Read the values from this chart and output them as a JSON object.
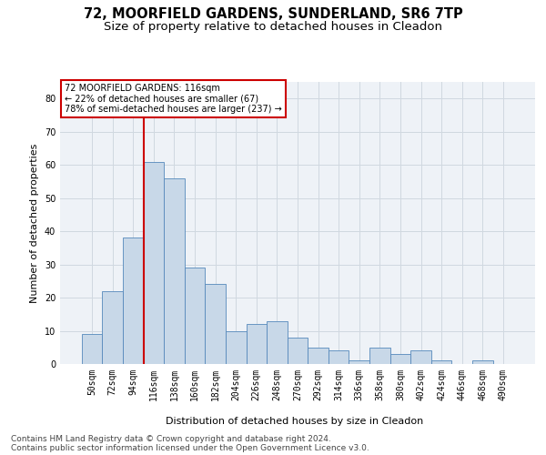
{
  "title1": "72, MOORFIELD GARDENS, SUNDERLAND, SR6 7TP",
  "title2": "Size of property relative to detached houses in Cleadon",
  "xlabel": "Distribution of detached houses by size in Cleadon",
  "ylabel": "Number of detached properties",
  "footnote1": "Contains HM Land Registry data © Crown copyright and database right 2024.",
  "footnote2": "Contains public sector information licensed under the Open Government Licence v3.0.",
  "bar_labels": [
    "50sqm",
    "72sqm",
    "94sqm",
    "116sqm",
    "138sqm",
    "160sqm",
    "182sqm",
    "204sqm",
    "226sqm",
    "248sqm",
    "270sqm",
    "292sqm",
    "314sqm",
    "336sqm",
    "358sqm",
    "380sqm",
    "402sqm",
    "424sqm",
    "446sqm",
    "468sqm",
    "490sqm"
  ],
  "bar_values": [
    9,
    22,
    38,
    61,
    56,
    29,
    24,
    10,
    12,
    13,
    8,
    5,
    4,
    1,
    5,
    3,
    4,
    1,
    0,
    1,
    0
  ],
  "bar_color": "#c8d8e8",
  "bar_edge_color": "#5588bb",
  "vline_color": "#cc0000",
  "annotation_text": "72 MOORFIELD GARDENS: 116sqm\n← 22% of detached houses are smaller (67)\n78% of semi-detached houses are larger (237) →",
  "annotation_box_color": "#ffffff",
  "annotation_box_edge_color": "#cc0000",
  "ylim": [
    0,
    85
  ],
  "yticks": [
    0,
    10,
    20,
    30,
    40,
    50,
    60,
    70,
    80
  ],
  "grid_color": "#d0d8e0",
  "bg_color": "#eef2f7",
  "title_fontsize": 10.5,
  "subtitle_fontsize": 9.5,
  "axis_label_fontsize": 8,
  "tick_fontsize": 7,
  "footnote_fontsize": 6.5
}
